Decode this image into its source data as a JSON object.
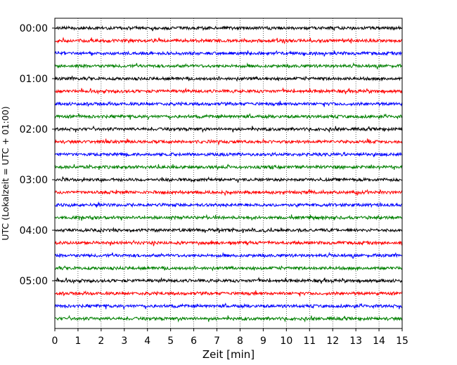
{
  "chart_data": {
    "type": "line",
    "title": "",
    "xlabel": "Zeit  [min]",
    "ylabel": "UTC (Lokalzeit = UTC + 01:00)",
    "xlim": [
      0,
      15
    ],
    "x_ticks": [
      "0",
      "1",
      "2",
      "3",
      "4",
      "5",
      "6",
      "7",
      "8",
      "9",
      "10",
      "11",
      "12",
      "13",
      "14",
      "15"
    ],
    "y_ticks": [
      "00:00",
      "01:00",
      "02:00",
      "03:00",
      "04:00",
      "05:00"
    ],
    "line_interval_minutes": 15,
    "grid": "vertical dotted at each minute",
    "colors_cycle": [
      "#000000",
      "#ff0000",
      "#0000ff",
      "#008000"
    ],
    "rows": [
      {
        "start": "00:00",
        "color": "#000000"
      },
      {
        "start": "00:15",
        "color": "#ff0000"
      },
      {
        "start": "00:30",
        "color": "#0000ff"
      },
      {
        "start": "00:45",
        "color": "#008000"
      },
      {
        "start": "01:00",
        "color": "#000000"
      },
      {
        "start": "01:15",
        "color": "#ff0000"
      },
      {
        "start": "01:30",
        "color": "#0000ff"
      },
      {
        "start": "01:45",
        "color": "#008000"
      },
      {
        "start": "02:00",
        "color": "#000000"
      },
      {
        "start": "02:15",
        "color": "#ff0000"
      },
      {
        "start": "02:30",
        "color": "#0000ff"
      },
      {
        "start": "02:45",
        "color": "#008000"
      },
      {
        "start": "03:00",
        "color": "#000000"
      },
      {
        "start": "03:15",
        "color": "#ff0000"
      },
      {
        "start": "03:30",
        "color": "#0000ff"
      },
      {
        "start": "03:45",
        "color": "#008000"
      },
      {
        "start": "04:00",
        "color": "#000000"
      },
      {
        "start": "04:15",
        "color": "#ff0000"
      },
      {
        "start": "04:30",
        "color": "#0000ff"
      },
      {
        "start": "04:45",
        "color": "#008000"
      },
      {
        "start": "05:00",
        "color": "#000000"
      },
      {
        "start": "05:15",
        "color": "#ff0000"
      },
      {
        "start": "05:30",
        "color": "#0000ff"
      },
      {
        "start": "05:45",
        "color": "#008000"
      }
    ]
  }
}
